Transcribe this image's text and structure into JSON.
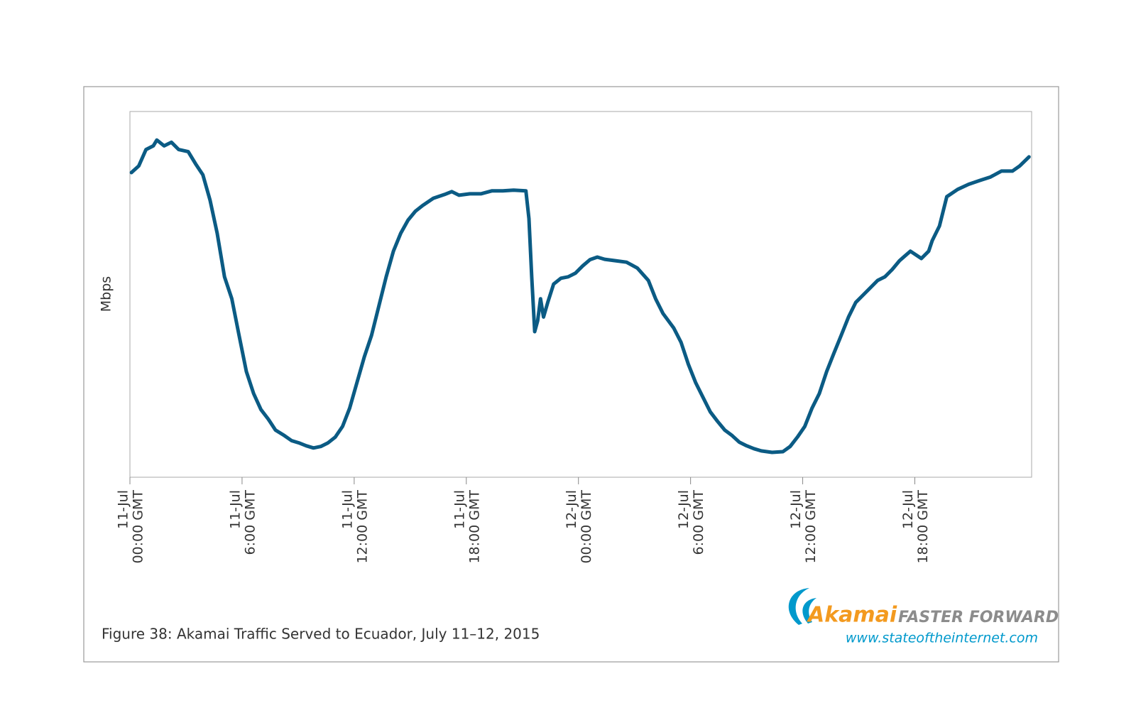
{
  "chart_data": {
    "type": "line",
    "ylabel": "Mbps",
    "caption": "Figure 38: Akamai Traffic Served to Ecuador, July 11–12, 2015",
    "logo": {
      "brand": "Akamai",
      "tagline": "FASTER FORWARD",
      "url": "www.stateoftheinternet.com"
    },
    "color": "#0b5b84",
    "xlim": [
      0,
      48.25
    ],
    "ylim": [
      0,
      100
    ],
    "xticks": [
      {
        "value": 0,
        "label": [
          "11-Jul",
          "00:00 GMT"
        ]
      },
      {
        "value": 6,
        "label": [
          "11-Jul",
          "6:00 GMT"
        ]
      },
      {
        "value": 12,
        "label": [
          "11-Jul",
          "12:00 GMT"
        ]
      },
      {
        "value": 18,
        "label": [
          "11-Jul",
          "18:00 GMT"
        ]
      },
      {
        "value": 24,
        "label": [
          "12-Jul",
          "00:00 GMT"
        ]
      },
      {
        "value": 30,
        "label": [
          "12-Jul",
          "6:00 GMT"
        ]
      },
      {
        "value": 36,
        "label": [
          "12-Jul",
          "12:00 GMT"
        ]
      },
      {
        "value": 42,
        "label": [
          "12-Jul",
          "18:00 GMT"
        ]
      }
    ],
    "x": [
      0.08,
      0.47,
      0.86,
      1.25,
      1.44,
      1.83,
      2.22,
      2.61,
      3.12,
      3.51,
      3.9,
      4.29,
      4.67,
      5.06,
      5.45,
      5.84,
      6.23,
      6.62,
      7.01,
      7.4,
      7.79,
      8.26,
      8.65,
      9.04,
      9.43,
      9.82,
      10.21,
      10.6,
      10.99,
      11.38,
      11.76,
      12.15,
      12.54,
      12.93,
      13.32,
      13.71,
      14.1,
      14.49,
      14.88,
      15.27,
      15.66,
      16.24,
      16.83,
      17.22,
      17.61,
      18.19,
      18.78,
      19.36,
      19.95,
      20.53,
      21.19,
      21.35,
      21.5,
      21.66,
      21.82,
      21.97,
      22.13,
      22.36,
      22.67,
      23.06,
      23.45,
      23.84,
      24.23,
      24.62,
      25.01,
      25.4,
      25.98,
      26.57,
      27.15,
      27.74,
      28.13,
      28.52,
      29.1,
      29.49,
      29.88,
      30.27,
      30.66,
      31.05,
      31.44,
      31.83,
      32.22,
      32.61,
      33.0,
      33.39,
      33.78,
      34.36,
      34.94,
      35.33,
      35.72,
      36.11,
      36.5,
      36.89,
      37.28,
      37.67,
      38.06,
      38.45,
      38.84,
      39.23,
      39.62,
      40.01,
      40.4,
      40.79,
      41.18,
      41.76,
      42.35,
      42.74,
      42.93,
      43.32,
      43.71,
      44.29,
      44.88,
      45.46,
      46.05,
      46.63,
      47.22,
      47.61,
      48.11
    ],
    "values": [
      83.3,
      85.1,
      89.6,
      90.6,
      92.2,
      90.6,
      91.6,
      89.6,
      89.0,
      85.7,
      82.7,
      75.7,
      66.7,
      54.8,
      48.8,
      38.8,
      28.9,
      22.9,
      18.5,
      15.9,
      12.9,
      11.4,
      10.0,
      9.4,
      8.6,
      8.0,
      8.4,
      9.4,
      11.0,
      13.9,
      18.9,
      25.9,
      32.9,
      38.8,
      46.8,
      54.8,
      61.8,
      66.7,
      70.3,
      72.7,
      74.3,
      76.3,
      77.3,
      78.1,
      77.1,
      77.5,
      77.5,
      78.3,
      78.3,
      78.5,
      78.3,
      70.7,
      54.8,
      39.8,
      42.8,
      48.8,
      43.8,
      47.8,
      52.8,
      54.4,
      54.8,
      55.8,
      57.8,
      59.5,
      60.2,
      59.6,
      59.2,
      58.8,
      57.2,
      53.8,
      48.8,
      44.8,
      40.8,
      36.9,
      30.9,
      25.9,
      21.9,
      17.9,
      15.3,
      12.9,
      11.4,
      9.6,
      8.6,
      7.8,
      7.2,
      6.8,
      7.0,
      8.4,
      11.0,
      13.9,
      18.9,
      22.9,
      28.9,
      33.9,
      38.8,
      43.8,
      47.8,
      49.8,
      51.8,
      53.8,
      54.8,
      56.8,
      59.2,
      61.8,
      59.8,
      61.8,
      64.7,
      68.7,
      76.7,
      78.7,
      80.1,
      81.1,
      82.1,
      83.7,
      83.7,
      85.1,
      87.6
    ]
  }
}
